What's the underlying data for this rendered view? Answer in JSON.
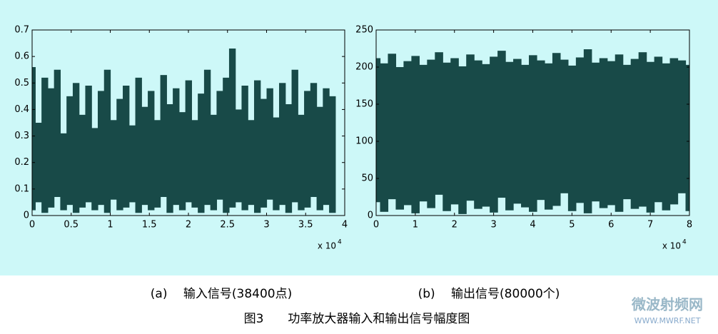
{
  "chart_data": [
    {
      "type": "band",
      "color": "#184a48",
      "xlim": [
        0,
        4
      ],
      "xticks": [
        0,
        0.5,
        1,
        1.5,
        2,
        2.5,
        3,
        3.5,
        4
      ],
      "ylim": [
        0,
        0.7
      ],
      "yticks": [
        0,
        0.1,
        0.2,
        0.3,
        0.4,
        0.5,
        0.6,
        0.7
      ],
      "x_multiplier": {
        "base": "x 10",
        "exponent": "4"
      },
      "x": [
        0,
        0.08,
        0.16,
        0.24,
        0.32,
        0.4,
        0.48,
        0.56,
        0.64,
        0.72,
        0.8,
        0.88,
        0.96,
        1.04,
        1.12,
        1.2,
        1.28,
        1.36,
        1.44,
        1.52,
        1.6,
        1.68,
        1.76,
        1.84,
        1.92,
        2,
        2.08,
        2.16,
        2.24,
        2.32,
        2.4,
        2.48,
        2.56,
        2.64,
        2.72,
        2.8,
        2.88,
        2.96,
        3.04,
        3.12,
        3.2,
        3.28,
        3.36,
        3.44,
        3.52,
        3.6,
        3.68,
        3.76,
        3.84
      ],
      "values": [
        0.56,
        0.35,
        0.52,
        0.48,
        0.55,
        0.31,
        0.45,
        0.5,
        0.38,
        0.49,
        0.33,
        0.47,
        0.55,
        0.36,
        0.44,
        0.49,
        0.34,
        0.52,
        0.41,
        0.47,
        0.36,
        0.53,
        0.42,
        0.48,
        0.39,
        0.51,
        0.36,
        0.46,
        0.55,
        0.38,
        0.47,
        0.52,
        0.63,
        0.4,
        0.49,
        0.36,
        0.51,
        0.44,
        0.48,
        0.37,
        0.5,
        0.42,
        0.55,
        0.38,
        0.47,
        0.5,
        0.41,
        0.48,
        0.45
      ],
      "lower": [
        0.02,
        0.05,
        0.01,
        0.03,
        0.07,
        0.02,
        0.04,
        0.01,
        0.03,
        0.05,
        0.02,
        0.04,
        0.01,
        0.06,
        0.02,
        0.03,
        0.05,
        0.01,
        0.04,
        0.02,
        0.03,
        0.07,
        0.01,
        0.04,
        0.02,
        0.05,
        0.03,
        0.01,
        0.04,
        0.02,
        0.06,
        0.01,
        0.03,
        0.05,
        0.02,
        0.04,
        0.01,
        0.03,
        0.06,
        0.02,
        0.04,
        0.01,
        0.05,
        0.02,
        0.03,
        0.07,
        0.02,
        0.04,
        0.01
      ],
      "caption": "(a)　 输入信号(38400点)"
    },
    {
      "type": "band",
      "color": "#184a48",
      "xlim": [
        0,
        8
      ],
      "xticks": [
        0,
        1,
        2,
        3,
        4,
        5,
        6,
        7,
        8
      ],
      "ylim": [
        0,
        250
      ],
      "yticks": [
        0,
        50,
        100,
        150,
        200,
        250
      ],
      "x_multiplier": {
        "base": "x 10",
        "exponent": "4"
      },
      "x": [
        0,
        0.2,
        0.4,
        0.6,
        0.8,
        1,
        1.2,
        1.4,
        1.6,
        1.8,
        2,
        2.2,
        2.4,
        2.6,
        2.8,
        3,
        3.2,
        3.4,
        3.6,
        3.8,
        4,
        4.2,
        4.4,
        4.6,
        4.8,
        5,
        5.2,
        5.4,
        5.6,
        5.8,
        6,
        6.2,
        6.4,
        6.6,
        6.8,
        7,
        7.2,
        7.4,
        7.6,
        7.8,
        8
      ],
      "values": [
        212,
        205,
        218,
        200,
        208,
        215,
        203,
        210,
        220,
        206,
        212,
        201,
        217,
        209,
        204,
        214,
        222,
        207,
        211,
        203,
        216,
        209,
        205,
        219,
        210,
        202,
        213,
        224,
        206,
        212,
        208,
        217,
        203,
        211,
        220,
        207,
        214,
        205,
        212,
        209,
        203
      ],
      "lower": [
        18,
        5,
        22,
        8,
        14,
        3,
        19,
        10,
        28,
        6,
        15,
        2,
        20,
        9,
        12,
        4,
        24,
        7,
        16,
        11,
        5,
        21,
        8,
        13,
        30,
        6,
        17,
        3,
        19,
        10,
        14,
        5,
        22,
        9,
        12,
        4,
        18,
        7,
        15,
        30,
        6
      ],
      "caption": "(b)　 输出信号(80000个)"
    }
  ],
  "figure_caption": "图3　　功率放大器输入和输出信号幅度图",
  "watermark": {
    "name": "微波射频网",
    "url": "WWW.MWRF.NET"
  }
}
